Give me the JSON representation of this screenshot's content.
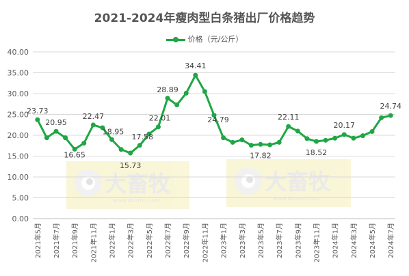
{
  "chart_data": {
    "type": "line",
    "title": "2021-2024年瘦肉型白条猪出厂价格趋势",
    "xlabel": "",
    "ylabel": "",
    "ylim": [
      0,
      40
    ],
    "yticks": [
      "0.00",
      "5.00",
      "10.00",
      "15.00",
      "20.00",
      "25.00",
      "30.00",
      "35.00",
      "40.00"
    ],
    "grid": true,
    "legend_position": "top",
    "x_tick_labels": [
      "2021年5月",
      "2021年7月",
      "2021年9月",
      "2021年11月",
      "2022年1月",
      "2022年3月",
      "2022年5月",
      "2022年7月",
      "2022年9月",
      "2022年11月",
      "2023年1月",
      "2023年3月",
      "2023年5月",
      "2023年7月",
      "2023年9月",
      "2023年11月",
      "2024年1月",
      "2024年3月",
      "2024年5月",
      "2024年7月"
    ],
    "x": [
      "2021年5月",
      "2021年6月",
      "2021年7月",
      "2021年8月",
      "2021年9月",
      "2021年10月",
      "2021年11月",
      "2021年12月",
      "2022年1月",
      "2022年2月",
      "2022年3月",
      "2022年4月",
      "2022年5月",
      "2022年6月",
      "2022年7月",
      "2022年8月",
      "2022年9月",
      "2022年10月",
      "2022年11月",
      "2022年12月",
      "2023年1月",
      "2023年2月",
      "2023年3月",
      "2023年4月",
      "2023年5月",
      "2023年6月",
      "2023年7月",
      "2023年8月",
      "2023年9月",
      "2023年10月",
      "2023年11月",
      "2023年12月",
      "2024年1月",
      "2024年2月",
      "2024年3月",
      "2024年4月",
      "2024年5月",
      "2024年6月",
      "2024年7月"
    ],
    "series": [
      {
        "name": "价格（元/公斤）",
        "color": "#1FA645",
        "values": [
          23.73,
          19.4,
          20.95,
          19.4,
          16.65,
          18.1,
          22.47,
          21.8,
          18.95,
          16.6,
          15.73,
          17.58,
          20.3,
          22.01,
          28.89,
          27.3,
          30.1,
          34.41,
          30.5,
          24.79,
          19.4,
          18.3,
          18.9,
          17.6,
          17.82,
          17.7,
          18.3,
          22.11,
          21.0,
          19.2,
          18.52,
          18.8,
          19.3,
          20.17,
          19.3,
          19.9,
          20.9,
          24.2,
          24.74
        ]
      }
    ],
    "data_labels": [
      {
        "index": 0,
        "text": "23.73"
      },
      {
        "index": 2,
        "text": "20.95"
      },
      {
        "index": 4,
        "text": "16.65"
      },
      {
        "index": 6,
        "text": "22.47"
      },
      {
        "index": 8,
        "text": "18.95"
      },
      {
        "index": 10,
        "text": "15.73"
      },
      {
        "index": 11,
        "text": "17.58"
      },
      {
        "index": 13,
        "text": "22.01"
      },
      {
        "index": 14,
        "text": "28.89"
      },
      {
        "index": 17,
        "text": "34.41"
      },
      {
        "index": 19,
        "text": "24.79"
      },
      {
        "index": 24,
        "text": "17.82"
      },
      {
        "index": 27,
        "text": "22.11"
      },
      {
        "index": 30,
        "text": "18.52"
      },
      {
        "index": 33,
        "text": "20.17"
      },
      {
        "index": 38,
        "text": "24.74"
      }
    ],
    "watermarks": [
      {
        "text": "大畜牧",
        "url": "www.dxumu.com"
      },
      {
        "text": "大畜牧",
        "url": "www.dxumu.com"
      }
    ]
  }
}
